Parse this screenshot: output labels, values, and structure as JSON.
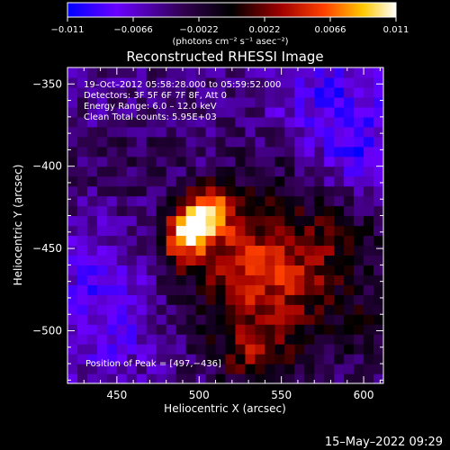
{
  "chart_data": {
    "type": "heatmap",
    "title": "Reconstructed RHESSI Image",
    "xlabel": "Heliocentric X (arcsec)",
    "ylabel": "Heliocentric Y (arcsec)",
    "xlim": [
      420,
      612
    ],
    "ylim": [
      -532,
      -340
    ],
    "x_ticks": [
      450,
      500,
      550,
      600
    ],
    "y_ticks": [
      -350,
      -400,
      -450,
      -500
    ],
    "x_tick_labels": [
      "450",
      "500",
      "550",
      "600"
    ],
    "y_tick_labels": [
      "−350",
      "−400",
      "−450",
      "−500"
    ],
    "colorbar": {
      "min": -0.011,
      "max": 0.011,
      "ticks": [
        -0.011,
        -0.0066,
        -0.0022,
        0.0022,
        0.0066,
        0.011
      ],
      "tick_labels": [
        "−0.011",
        "−0.0066",
        "−0.0022",
        "0.0022",
        "0.0066",
        "0.011"
      ],
      "units_label": "(photons cm⁻² s⁻¹ asec⁻²)",
      "colormap": [
        "#0000ff",
        "#7a00ff",
        "#300050",
        "#000000",
        "#a00000",
        "#ff5000",
        "#ffd800",
        "#ffffff"
      ]
    },
    "annotations": [
      "19–Oct–2012 05:58:28.000 to 05:59:52.000",
      "Detectors: 3F 5F 6F 7F 8F, Att 0",
      "Energy Range: 6.0 – 12.0 keV",
      "Clean    Total counts: 5.95E+03"
    ],
    "peak_label": "Position of Peak = [497,−436]",
    "peak": [
      497,
      -436
    ],
    "timestamp": "15–May–2022 09:29",
    "grid_step": 6,
    "intensity_features": {
      "background": -0.0045,
      "sources": [
        {
          "x": 497,
          "y": -436,
          "value": 0.0108,
          "sigma": 9
        },
        {
          "x": 506,
          "y": -425,
          "value": 0.0082,
          "sigma": 10
        },
        {
          "x": 488,
          "y": -448,
          "value": 0.0058,
          "sigma": 10
        },
        {
          "x": 520,
          "y": -452,
          "value": 0.0052,
          "sigma": 26
        },
        {
          "x": 555,
          "y": -465,
          "value": 0.0046,
          "sigma": 30
        },
        {
          "x": 540,
          "y": -500,
          "value": 0.0034,
          "sigma": 26
        },
        {
          "x": 585,
          "y": -445,
          "value": 0.0026,
          "sigma": 22
        },
        {
          "x": 466,
          "y": -395,
          "value": 0.0016,
          "sigma": 16
        },
        {
          "x": 430,
          "y": -398,
          "value": 0.001,
          "sigma": 12
        },
        {
          "x": 540,
          "y": -400,
          "value": 0.0016,
          "sigma": 18
        },
        {
          "x": 600,
          "y": -500,
          "value": 0.0024,
          "sigma": 14
        },
        {
          "x": 530,
          "y": -515,
          "value": 0.003,
          "sigma": 14
        }
      ],
      "dark_regions": [
        {
          "x": 582,
          "y": -360,
          "value": -0.007,
          "sigma": 24
        },
        {
          "x": 440,
          "y": -465,
          "value": -0.006,
          "sigma": 18
        },
        {
          "x": 445,
          "y": -505,
          "value": -0.0055,
          "sigma": 18
        },
        {
          "x": 600,
          "y": -395,
          "value": -0.0055,
          "sigma": 16
        }
      ]
    }
  }
}
